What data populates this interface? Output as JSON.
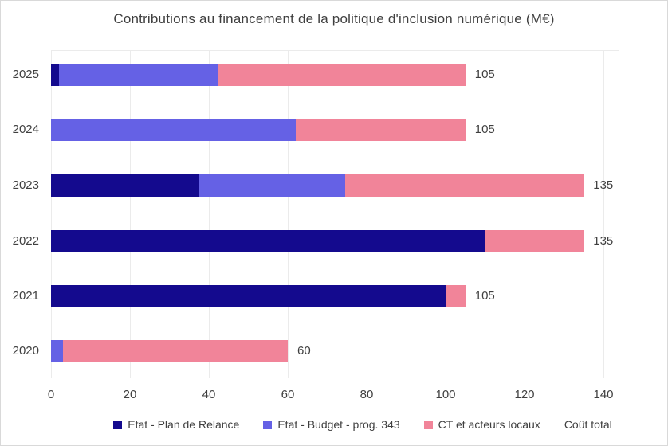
{
  "chart_data": {
    "type": "bar",
    "orientation": "horizontal",
    "stacked": true,
    "title": "Contributions au financement de la politique d'inclusion numérique (M€)",
    "categories": [
      "2025",
      "2024",
      "2023",
      "2022",
      "2021",
      "2020"
    ],
    "series": [
      {
        "name": "Etat - Plan de Relance",
        "color": "#140a8e",
        "values": [
          2,
          0,
          37.5,
          110,
          100,
          0
        ]
      },
      {
        "name": "Etat - Budget - prog. 343",
        "color": "#6561e5",
        "values": [
          40.5,
          62,
          37,
          0,
          0,
          3
        ]
      },
      {
        "name": "CT et acteurs locaux",
        "color": "#f18499",
        "values": [
          62.5,
          43,
          60.5,
          25,
          5,
          57
        ]
      }
    ],
    "totals": [
      105,
      105,
      135,
      135,
      105,
      60
    ],
    "total_label": "Coût total",
    "xticks": [
      0,
      20,
      40,
      60,
      80,
      100,
      120,
      140
    ],
    "xlim": [
      0,
      145
    ],
    "grid": "vertical",
    "legend_position": "bottom",
    "colors": {
      "grid": "#ebebeb",
      "text": "#3f3f3f",
      "frame": "#d9d9d9",
      "background": "#ffffff"
    }
  }
}
